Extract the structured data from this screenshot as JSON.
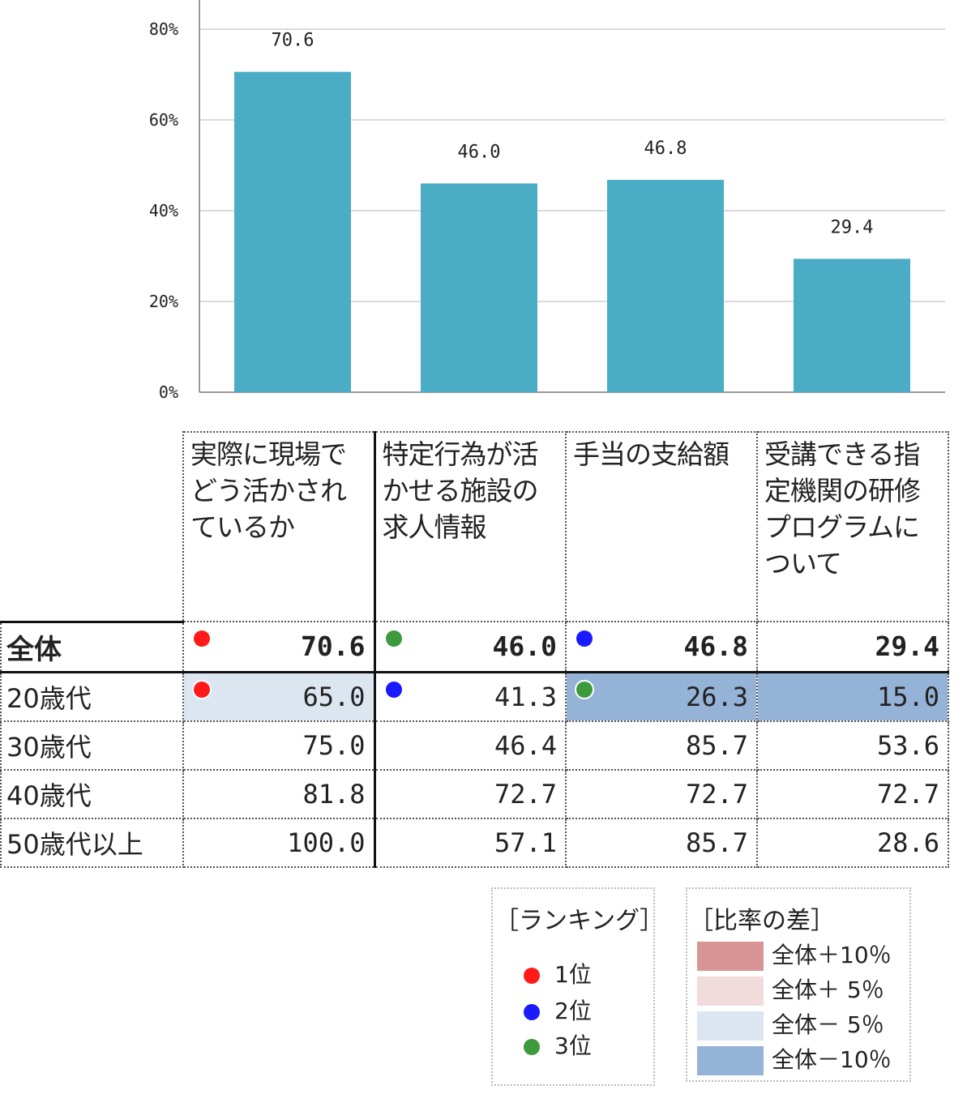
{
  "colors": {
    "bar": "#4BACC6",
    "grid": "#cfcfcf",
    "rank_1": "#ff1a1a",
    "rank_2": "#1a1aff",
    "rank_3": "#3c9a3c",
    "diff_plus10": "#d99595",
    "diff_plus5": "#f2dcdb",
    "diff_minus5": "#dce6f1",
    "diff_minus10": "#95b3d7"
  },
  "chart_data": {
    "type": "bar",
    "categories": [
      "実際に現場でどう活かされているか",
      "特定行為が活かせる施設の求人情報",
      "手当の支給額",
      "受講できる指定機関の研修プログラムについて"
    ],
    "values": [
      70.6,
      46.0,
      46.8,
      29.4
    ],
    "value_labels": [
      "70.6",
      "46.0",
      "46.8",
      "29.4"
    ],
    "ylim": [
      0,
      80
    ],
    "y_ticks": [
      0,
      20,
      40,
      60,
      80
    ],
    "y_tick_labels": [
      "0%",
      "20%",
      "40%",
      "60%",
      "80%"
    ],
    "grid": true
  },
  "table": {
    "headers": [
      "実際に現場でどう活かされているか",
      "特定行為が活かせる施設の求人情報",
      "手当の支給額",
      "受講できる指定機関の研修プログラムについて"
    ],
    "rows": [
      {
        "label": "全体",
        "values": [
          "70.6",
          "46.0",
          "46.8",
          "29.4"
        ],
        "ranks": [
          1,
          3,
          2,
          0
        ],
        "shade": [
          "",
          "",
          "",
          ""
        ]
      },
      {
        "label": "20歳代",
        "values": [
          "65.0",
          "41.3",
          "26.3",
          "15.0"
        ],
        "ranks": [
          1,
          2,
          3,
          0
        ],
        "shade": [
          "minus5",
          "",
          "minus10",
          "minus10"
        ]
      },
      {
        "label": "30歳代",
        "values": [
          "75.0",
          "46.4",
          "85.7",
          "53.6"
        ],
        "ranks": [
          0,
          0,
          0,
          0
        ],
        "shade": [
          "",
          "",
          "",
          ""
        ]
      },
      {
        "label": "40歳代",
        "values": [
          "81.8",
          "72.7",
          "72.7",
          "72.7"
        ],
        "ranks": [
          0,
          0,
          0,
          0
        ],
        "shade": [
          "",
          "",
          "",
          ""
        ]
      },
      {
        "label": "50歳代以上",
        "values": [
          "100.0",
          "57.1",
          "85.7",
          "28.6"
        ],
        "ranks": [
          0,
          0,
          0,
          0
        ],
        "shade": [
          "",
          "",
          "",
          ""
        ]
      }
    ]
  },
  "legend_rank": {
    "title": "［ランキング］",
    "items": [
      {
        "label": "1位",
        "color_key": "rank_1"
      },
      {
        "label": "2位",
        "color_key": "rank_2"
      },
      {
        "label": "3位",
        "color_key": "rank_3"
      }
    ]
  },
  "legend_diff": {
    "title": "［比率の差］",
    "items": [
      {
        "label": "全体＋10％",
        "color_key": "diff_plus10"
      },
      {
        "label": "全体＋ 5％",
        "color_key": "diff_plus5"
      },
      {
        "label": "全体－ 5％",
        "color_key": "diff_minus5"
      },
      {
        "label": "全体－10％",
        "color_key": "diff_minus10"
      }
    ]
  }
}
